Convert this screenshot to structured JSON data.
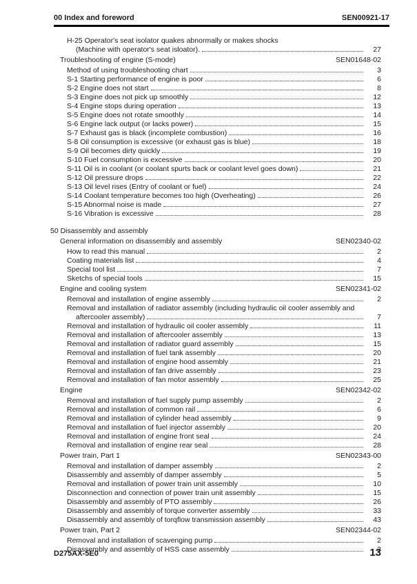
{
  "header": {
    "section": "00 Index and foreword",
    "code": "SEN00921-17"
  },
  "footer": {
    "model": "D275AX-5E0",
    "page": "13"
  },
  "colors": {
    "text": "#1c1c1c",
    "rule": "#000000",
    "leader_dots": "#4a4a4a",
    "background": "#ffffff"
  },
  "toc": [
    {
      "type": "entry",
      "lines": [
        "H-25 Operator's seat isolator quakes abnormally or makes shocks",
        "(Machine with operator's seat isloator). "
      ],
      "page": "27"
    },
    {
      "type": "section",
      "title": "Troubleshooting of engine (S-mode)",
      "code": "SEN01648-02"
    },
    {
      "type": "entry",
      "title": "Method of using troubleshooting chart",
      "page": "3"
    },
    {
      "type": "entry",
      "title": "S-1 Starting performance of engine is poor",
      "page": "6"
    },
    {
      "type": "entry",
      "title": "S-2 Engine does not start",
      "page": "8"
    },
    {
      "type": "entry",
      "title": "S-3 Engine does not pick up smoothly",
      "page": "12"
    },
    {
      "type": "entry",
      "title": "S-4 Engine stops during operation",
      "page": "13"
    },
    {
      "type": "entry",
      "title": "S-5 Engine does not rotate smoothly",
      "page": "14"
    },
    {
      "type": "entry",
      "title": "S-6 Engine lack output (or lacks power)",
      "page": "15"
    },
    {
      "type": "entry",
      "title": "S-7 Exhaust gas is black (incomplete combustion)",
      "page": "16"
    },
    {
      "type": "entry",
      "title": "S-8 Oil consumption is excessive (or exhaust gas is blue)",
      "page": "18"
    },
    {
      "type": "entry",
      "title": "S-9 Oil becomes dirty quickly",
      "page": "19"
    },
    {
      "type": "entry",
      "title": "S-10 Fuel consumption is excessive",
      "page": "20"
    },
    {
      "type": "entry",
      "title": "S-11 Oil is in coolant (or coolant spurts back or coolant level goes down)",
      "page": "21"
    },
    {
      "type": "entry",
      "title": "S-12 Oil pressure drops",
      "page": "22"
    },
    {
      "type": "entry",
      "title": "S-13 Oil level rises (Entry of coolant or fuel)",
      "page": "24"
    },
    {
      "type": "entry",
      "title": "S-14 Coolant temperature becomes too high (Overheating)",
      "page": "26"
    },
    {
      "type": "entry",
      "title": "S-15 Abnormal noise is made",
      "page": "27"
    },
    {
      "type": "entry",
      "title": "S-16 Vibration is excessive",
      "page": "28"
    },
    {
      "type": "chapter",
      "title": "50 Disassembly and assembly"
    },
    {
      "type": "section",
      "title": "General information on disassembly and assembly",
      "code": "SEN02340-02"
    },
    {
      "type": "entry",
      "title": "How to read this manual",
      "page": "2"
    },
    {
      "type": "entry",
      "title": "Coating materials list",
      "page": "4"
    },
    {
      "type": "entry",
      "title": "Special tool list",
      "page": "7"
    },
    {
      "type": "entry",
      "title": "Sketchs of special tools",
      "page": "15"
    },
    {
      "type": "section",
      "title": "Engine and cooling system",
      "code": "SEN02341-02"
    },
    {
      "type": "entry",
      "title": "Removal and installation of engine assembly",
      "page": "2"
    },
    {
      "type": "entry",
      "lines": [
        "Removal and installation of radiator assembly (including hydraulic oil cooler assembly and",
        "aftercooler assembly)"
      ],
      "page": "7"
    },
    {
      "type": "entry",
      "title": "Removal and installation of hydraulic oil cooler assembly",
      "page": "11"
    },
    {
      "type": "entry",
      "title": "Removal and installation of aftercooler assembly",
      "page": "13"
    },
    {
      "type": "entry",
      "title": "Removal and installation of radiator guard assembly",
      "page": "15"
    },
    {
      "type": "entry",
      "title": "Removal and installation of fuel tank assembly",
      "page": "20"
    },
    {
      "type": "entry",
      "title": "Removal and installation of engine hood assembly",
      "page": "21"
    },
    {
      "type": "entry",
      "title": "Removal and installation of fan drive assembly",
      "page": "23"
    },
    {
      "type": "entry",
      "title": "Removal and installation of fan motor assembly",
      "page": "25"
    },
    {
      "type": "section",
      "title": "Engine",
      "code": "SEN02342-02"
    },
    {
      "type": "entry",
      "title": "Removal and installation of fuel supply pump assembly",
      "page": "2"
    },
    {
      "type": "entry",
      "title": "Removal and installation of common rail",
      "page": "6"
    },
    {
      "type": "entry",
      "title": "Removal and installation of cylinder head assembly",
      "page": "9"
    },
    {
      "type": "entry",
      "title": "Removal and installation of fuel injector assembly",
      "page": "20"
    },
    {
      "type": "entry",
      "title": "Removal and installation of engine front seal",
      "page": "24"
    },
    {
      "type": "entry",
      "title": "Removal and installation of engine rear seal",
      "page": "28"
    },
    {
      "type": "section",
      "title": "Power train, Part 1",
      "code": "SEN02343-00"
    },
    {
      "type": "entry",
      "title": "Removal and installation of damper assembly",
      "page": "2"
    },
    {
      "type": "entry",
      "title": "Disassembly and assembly of damper assembly",
      "page": "5"
    },
    {
      "type": "entry",
      "title": "Removal and installation of power train unit assembly",
      "page": "10"
    },
    {
      "type": "entry",
      "title": "Disconnection and connection of power train unit assembly",
      "page": "15"
    },
    {
      "type": "entry",
      "title": "Disassembly and assembly of PTO assembly",
      "page": "26"
    },
    {
      "type": "entry",
      "title": "Disassembly and assembly of torque converter assembly",
      "page": "33"
    },
    {
      "type": "entry",
      "title": "Disassembly and assembly of torqflow transmission assembly",
      "page": "43"
    },
    {
      "type": "section",
      "title": "Power train, Part 2",
      "code": "SEN02344-02"
    },
    {
      "type": "entry",
      "title": "Removal and installation of scavenging pump",
      "page": "2"
    },
    {
      "type": "entry",
      "title": "Disassembly and assembly of HSS case assembly",
      "page": "3"
    }
  ]
}
